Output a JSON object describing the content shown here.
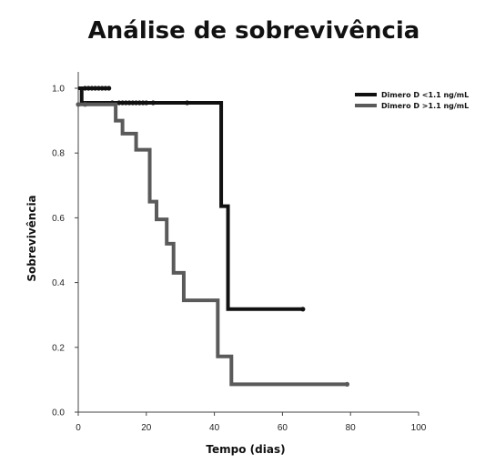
{
  "chart_data": {
    "type": "line",
    "title": "Análise de sobrevivência",
    "xlabel": "Tempo (dias)",
    "ylabel": "Sobrevivência",
    "xlim": [
      0,
      100
    ],
    "ylim": [
      0,
      1.0
    ],
    "x_ticks": [
      "0",
      "20",
      "40",
      "60",
      "80",
      "100"
    ],
    "y_ticks": [
      "0.0",
      "0.2",
      "0.4",
      "0.6",
      "0.8",
      "1.0"
    ],
    "grid": false,
    "legend_position": "top-right",
    "step": true,
    "series": [
      {
        "name": "Dimero D <1.1 ng/mL",
        "color": "#111111",
        "steps": [
          [
            0,
            1.0
          ],
          [
            1,
            0.955
          ],
          [
            42,
            0.636
          ],
          [
            44,
            0.318
          ]
        ],
        "end_x": 66,
        "censored": [
          [
            2,
            1.0
          ],
          [
            3,
            1.0
          ],
          [
            4,
            1.0
          ],
          [
            5,
            1.0
          ],
          [
            6,
            1.0
          ],
          [
            7,
            1.0
          ],
          [
            8,
            1.0
          ],
          [
            9,
            1.0
          ],
          [
            10,
            0.955
          ],
          [
            12,
            0.955
          ],
          [
            13,
            0.955
          ],
          [
            14,
            0.955
          ],
          [
            15,
            0.955
          ],
          [
            16,
            0.955
          ],
          [
            17,
            0.955
          ],
          [
            18,
            0.955
          ],
          [
            19,
            0.955
          ],
          [
            20,
            0.955
          ],
          [
            22,
            0.955
          ],
          [
            32,
            0.955
          ],
          [
            66,
            0.318
          ]
        ]
      },
      {
        "name": "Dimero D >1.1 ng/mL",
        "color": "#5a5a5a",
        "steps": [
          [
            0,
            0.95
          ],
          [
            11,
            0.9
          ],
          [
            13,
            0.86
          ],
          [
            17,
            0.81
          ],
          [
            21,
            0.65
          ],
          [
            23,
            0.595
          ],
          [
            26,
            0.52
          ],
          [
            28,
            0.43
          ],
          [
            31,
            0.345
          ],
          [
            41,
            0.172
          ],
          [
            45,
            0.086
          ]
        ],
        "end_x": 79,
        "censored": [
          [
            0,
            0.95
          ],
          [
            2,
            0.95
          ],
          [
            79,
            0.086
          ]
        ]
      }
    ]
  }
}
